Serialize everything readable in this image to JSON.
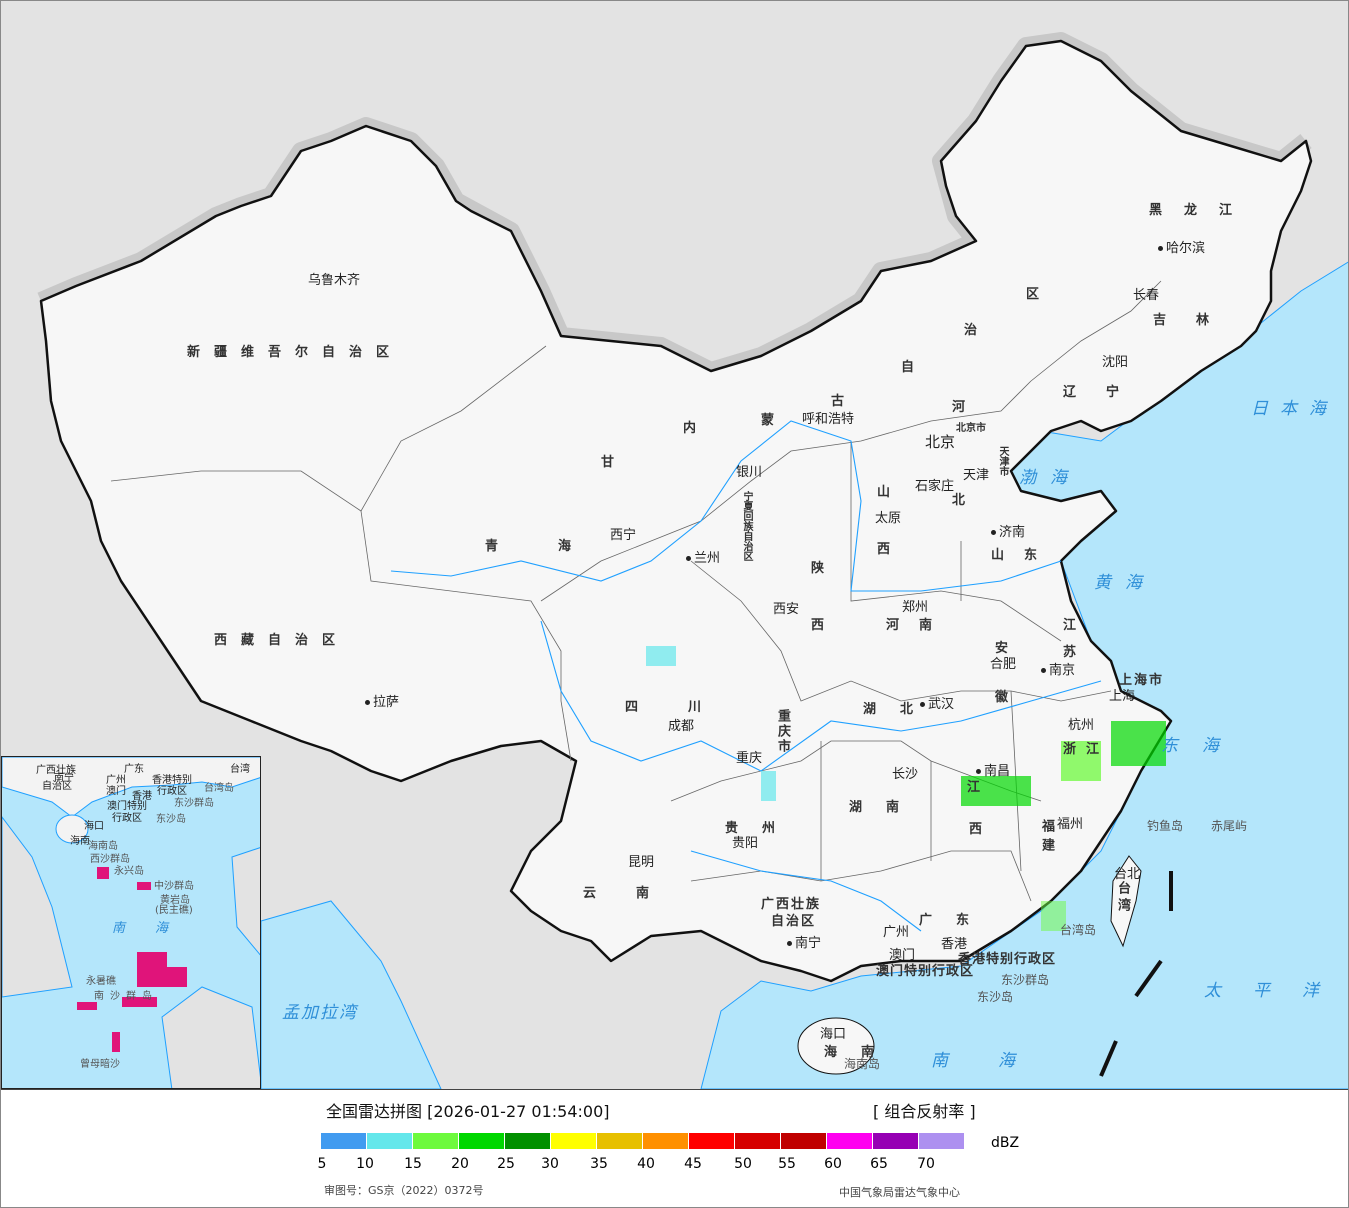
{
  "map": {
    "colors": {
      "sea": "#b4e6fb",
      "foreign_land": "#e3e3e3",
      "china_land": "#f7f7f7",
      "border": "#111111",
      "rivers": "#1fa0ff"
    },
    "provinces": [
      "新疆维吾尔自治区",
      "西藏自治区",
      "青海",
      "甘",
      "内",
      "蒙",
      "古",
      "自",
      "治",
      "区",
      "黑龙江",
      "吉林",
      "辽宁",
      "河",
      "北",
      "山",
      "西",
      "山东",
      "河南",
      "陕",
      "西",
      "江",
      "苏",
      "安",
      "徽",
      "湖北",
      "湖南",
      "江",
      "西",
      "浙江",
      "福建",
      "四川",
      "重庆市",
      "贵州",
      "云南",
      "广西壮族",
      "自治区",
      "广东",
      "海南",
      "台湾",
      "上海市",
      "宁夏回族自治区",
      "天津市",
      "北京市"
    ],
    "cities": [
      "乌鲁木齐",
      "拉萨",
      "西宁",
      "兰州",
      "银川",
      "呼和浩特",
      "北京",
      "天津",
      "石家庄",
      "太原",
      "济南",
      "郑州",
      "西安",
      "成都",
      "重庆",
      "贵阳",
      "昆明",
      "南宁",
      "广州",
      "澳门",
      "香港",
      "长沙",
      "武汉",
      "南昌",
      "合肥",
      "南京",
      "上海",
      "杭州",
      "福州",
      "台北",
      "沈阳",
      "长春",
      "哈尔滨",
      "海口"
    ],
    "seas": [
      "渤海",
      "黄海",
      "东海",
      "南海",
      "太平洋",
      "日本海",
      "孟加拉湾"
    ],
    "islands": [
      "钓鱼岛",
      "赤尾屿",
      "台湾岛",
      "东沙群岛",
      "东沙岛",
      "海南岛",
      "香港特别行政区",
      "澳门特别行政区"
    ],
    "inset": {
      "labels": [
        "广西壮族",
        "自治区",
        "南宁",
        "广东",
        "广州",
        "澳门",
        "香港",
        "香港特别",
        "行政区",
        "澳门特别",
        "行政区",
        "台湾",
        "台湾岛",
        "东沙群岛",
        "东沙岛",
        "海口",
        "海南",
        "海南岛",
        "西沙群岛",
        "永兴岛",
        "中沙群岛",
        "黄岩岛",
        "(民主礁)",
        "南海",
        "永暑礁",
        "南沙群岛",
        "曾母暗沙"
      ]
    }
  },
  "legend": {
    "title": "全国雷达拼图 [2026-01-27 01:54:00]",
    "product": "[ 组合反射率 ]",
    "unit": "dBZ",
    "ticks": [
      "5",
      "10",
      "15",
      "20",
      "25",
      "30",
      "35",
      "40",
      "45",
      "50",
      "55",
      "60",
      "65",
      "70"
    ],
    "colors": [
      "#419bf0",
      "#64e7eb",
      "#6dfa3d",
      "#00d800",
      "#019000",
      "#ffff00",
      "#e7c000",
      "#ff9000",
      "#ff0000",
      "#d60000",
      "#c00000",
      "#ff00f0",
      "#9600b4",
      "#ad90f0"
    ],
    "approval": "审图号：GS京（2022）0372号",
    "organization": "中国气象局雷达气象中心"
  }
}
